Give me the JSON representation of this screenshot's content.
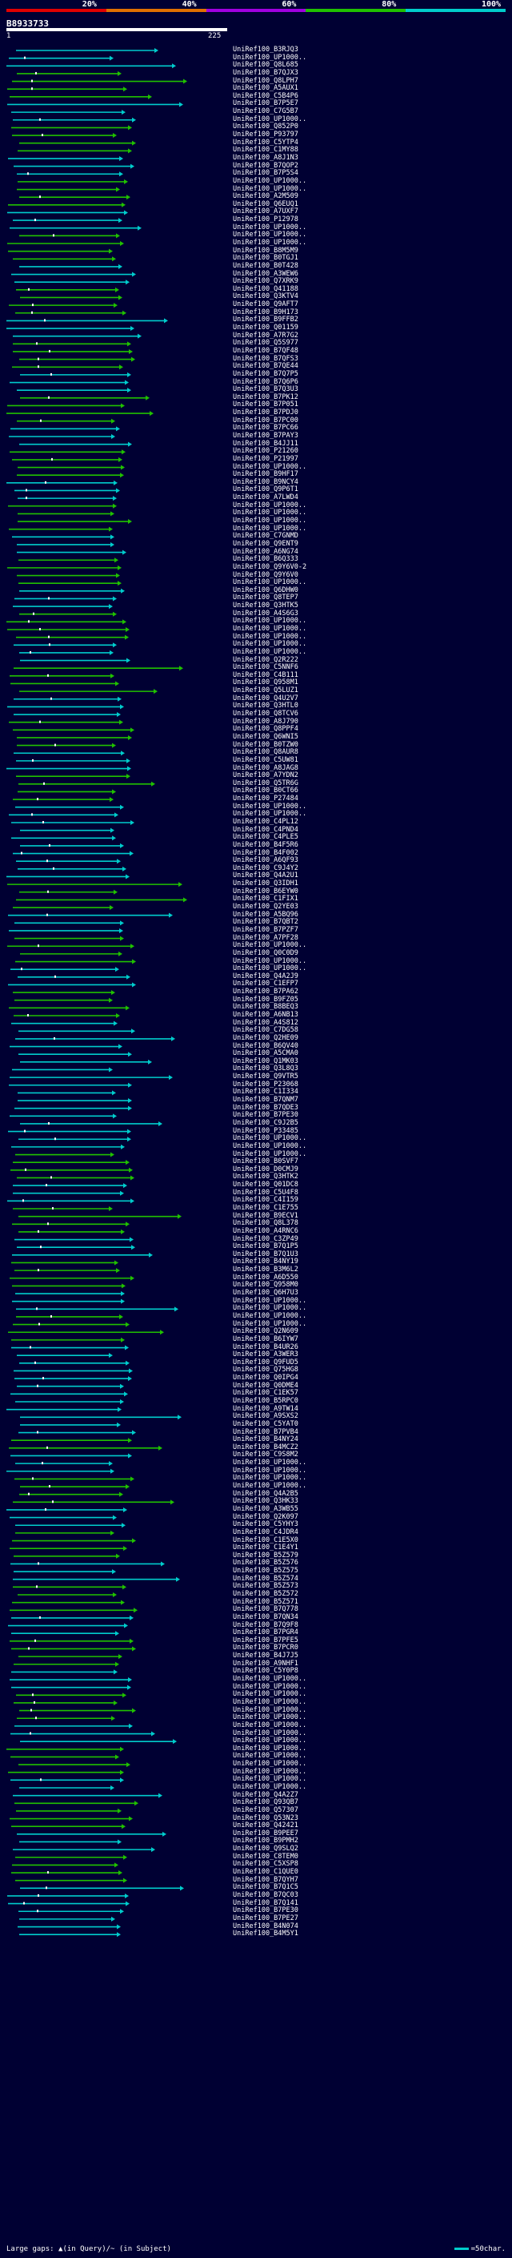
{
  "scale": {
    "labels": [
      "20%",
      "40%",
      "60%",
      "80%",
      "100%"
    ],
    "colors": [
      "#e00000",
      "#e07000",
      "#a000e0",
      "#20c000",
      "#00cccc"
    ]
  },
  "query": {
    "id": "B8933733",
    "start": "1",
    "end": "225"
  },
  "hits": [
    "UniRef100_B3RJQ3",
    "UniRef100_UP1000..",
    "UniRef100_Q8L685",
    "UniRef100_B7QJX3",
    "UniRef100_Q8LPH7",
    "UniRef100_A5AUX1",
    "UniRef100_C5B4P6",
    "UniRef100_B7P5E7",
    "UniRef100_C7G5B7",
    "UniRef100_UP1000..",
    "UniRef100_Q852P0",
    "UniRef100_P93797",
    "UniRef100_C5YTP4",
    "UniRef100_C1MY88",
    "UniRef100_A8J1N3",
    "UniRef100_B7QOP2",
    "UniRef100_B7P5S4",
    "UniRef100_UP1000..",
    "UniRef100_UP1000..",
    "UniRef100_A2M509",
    "UniRef100_Q6EUQ1",
    "UniRef100_A7UXF7",
    "UniRef100_P12978",
    "UniRef100_UP1000..",
    "UniRef100_UP1000..",
    "UniRef100_UP1000..",
    "UniRef100_B8M5M9",
    "UniRef100_B0TGJ1",
    "UniRef100_B0T428",
    "UniRef100_A3WEW6",
    "UniRef100_Q7XRK9",
    "UniRef100_Q41188",
    "UniRef100_Q3KTV4",
    "UniRef100_Q9AFT7",
    "UniRef100_B9H173",
    "UniRef100_B9FFB2",
    "UniRef100_Q01159",
    "UniRef100_A7R7G2",
    "UniRef100_Q5S977",
    "UniRef100_B7QF48",
    "UniRef100_B7QFS3",
    "UniRef100_B7QE44",
    "UniRef100_B7Q7P5",
    "UniRef100_B7Q6P6",
    "UniRef100_B7Q3U3",
    "UniRef100_B7PK12",
    "UniRef100_B7P051",
    "UniRef100_B7PDJ0",
    "UniRef100_B7PC00",
    "UniRef100_B7PC66",
    "UniRef100_B7PAY3",
    "UniRef100_B4JJ11",
    "UniRef100_P21260",
    "UniRef100_P21997",
    "UniRef100_UP1000..",
    "UniRef100_B9HF17",
    "UniRef100_B9NCY4",
    "UniRef100_Q9P6T1",
    "UniRef100_A7LWD4",
    "UniRef100_UP1000..",
    "UniRef100_UP1000..",
    "UniRef100_UP1000..",
    "UniRef100_UP1000..",
    "UniRef100_C7GNMD",
    "UniRef100_Q9ENT9",
    "UniRef100_A6NG74",
    "UniRef100_B6Q333",
    "UniRef100_Q9Y6V0-2",
    "UniRef100_Q9Y6V0",
    "UniRef100_UP1000..",
    "UniRef100_Q6DHW0",
    "UniRef100_Q8TEP7",
    "UniRef100_Q3HTK5",
    "UniRef100_A4S6G3",
    "UniRef100_UP1000..",
    "UniRef100_UP1000..",
    "UniRef100_UP1000..",
    "UniRef100_UP1000..",
    "UniRef100_UP1000..",
    "UniRef100_Q2R222",
    "UniRef100_C5NNF6",
    "UniRef100_C4B111",
    "UniRef100_Q958M1",
    "UniRef100_Q5LUZ1",
    "UniRef100_Q4U2V7",
    "UniRef100_Q3HTL0",
    "UniRef100_Q8TCV6",
    "UniRef100_A8J790",
    "UniRef100_Q8PPF4",
    "UniRef100_Q6WNI5",
    "UniRef100_B0TZW0",
    "UniRef100_Q8AUR8",
    "UniRef100_C5UW81",
    "UniRef100_A8JAG8",
    "UniRef100_A7YDN2",
    "UniRef100_Q5TR6G",
    "UniRef100_B0CT66",
    "UniRef100_P27484",
    "UniRef100_UP1000..",
    "UniRef100_UP1000..",
    "UniRef100_C4PL12",
    "UniRef100_C4PND4",
    "UniRef100_C4PLE5",
    "UniRef100_B4F5R6",
    "UniRef100_B4F002",
    "UniRef100_A6QF93",
    "UniRef100_C9J4Y2",
    "UniRef100_Q4A2U1",
    "UniRef100_Q3IDH1",
    "UniRef100_B6EYW0",
    "UniRef100_C1FIX1",
    "UniRef100_Q2YE03",
    "UniRef100_A5BQ96",
    "UniRef100_B7QBT2",
    "UniRef100_B7PZF7",
    "UniRef100_A7PF28",
    "UniRef100_UP1000..",
    "UniRef100_Q0C0D9",
    "UniRef100_UP1000..",
    "UniRef100_UP1000..",
    "UniRef100_Q4A2J9",
    "UniRef100_C1EFP7",
    "UniRef100_B7PA62",
    "UniRef100_B9FZ05",
    "UniRef100_B8BEQ3",
    "UniRef100_A6NB13",
    "UniRef100_A4S812",
    "UniRef100_C7DG58",
    "UniRef100_Q2HE09",
    "UniRef100_B6QV40",
    "UniRef100_A5CMA0",
    "UniRef100_Q1MK03",
    "UniRef100_Q3L8Q3",
    "UniRef100_Q9VTR5",
    "UniRef100_P23068",
    "UniRef100_C1I334",
    "UniRef100_B7QNM7",
    "UniRef100_B7QDE3",
    "UniRef100_B7PE30",
    "UniRef100_C9J2B5",
    "UniRef100_P33485",
    "UniRef100_UP1000..",
    "UniRef100_UP1000..",
    "UniRef100_UP1000..",
    "UniRef100_B0SVF7",
    "UniRef100_D0CMJ9",
    "UniRef100_Q3HTK2",
    "UniRef100_Q01DC8",
    "UniRef100_C5U4F8",
    "UniRef100_C4I159",
    "UniRef100_C1E755",
    "UniRef100_B9ECV1",
    "UniRef100_Q8L378",
    "UniRef100_A4RNC6",
    "UniRef100_C3ZP49",
    "UniRef100_B7Q1P5",
    "UniRef100_B7Q1U3",
    "UniRef100_B4NY19",
    "UniRef100_B3M6L2",
    "UniRef100_A6D550",
    "UniRef100_Q958M0",
    "UniRef100_Q6H7U3",
    "UniRef100_UP1000..",
    "UniRef100_UP1000..",
    "UniRef100_UP1000..",
    "UniRef100_UP1000..",
    "UniRef100_Q2N609",
    "UniRef100_B6IYW7",
    "UniRef100_B4UR26",
    "UniRef100_A3WER3",
    "UniRef100_Q9FUD5",
    "UniRef100_Q75HG8",
    "UniRef100_Q0IPG4",
    "UniRef100_Q0DME4",
    "UniRef100_C1EK57",
    "UniRef100_B5RPC0",
    "UniRef100_A9TW14",
    "UniRef100_A9SXS2",
    "UniRef100_C5YAT0",
    "UniRef100_B7PVB4",
    "UniRef100_B4NY24",
    "UniRef100_B4MCZ2",
    "UniRef100_C9S8M2",
    "UniRef100_UP1000..",
    "UniRef100_UP1000..",
    "UniRef100_UP1000..",
    "UniRef100_UP1000..",
    "UniRef100_Q4A2B5",
    "UniRef100_Q3HK33",
    "UniRef100_A3WB55",
    "UniRef100_Q2K097",
    "UniRef100_C5YHY3",
    "UniRef100_C4JDR4",
    "UniRef100_C1E5X0",
    "UniRef100_C1E4Y1",
    "UniRef100_B5Z579",
    "UniRef100_B5Z576",
    "UniRef100_B5Z575",
    "UniRef100_B5Z574",
    "UniRef100_B5Z573",
    "UniRef100_B5Z572",
    "UniRef100_B5Z571",
    "UniRef100_B7Q778",
    "UniRef100_B7QN34",
    "UniRef100_B7Q9F8",
    "UniRef100_B7PGR4",
    "UniRef100_B7PFE5",
    "UniRef100_B7PCR0",
    "UniRef100_B4J7J5",
    "UniRef100_A9NHF1",
    "UniRef100_C5Y0P8",
    "UniRef100_UP1000..",
    "UniRef100_UP1000..",
    "UniRef100_UP1000..",
    "UniRef100_UP1000..",
    "UniRef100_UP1000..",
    "UniRef100_UP1000..",
    "UniRef100_UP1000..",
    "UniRef100_UP1000..",
    "UniRef100_UP1000..",
    "UniRef100_UP1000..",
    "UniRef100_UP1000..",
    "UniRef100_UP1000..",
    "UniRef100_UP1000..",
    "UniRef100_UP1000..",
    "UniRef100_UP1000..",
    "UniRef100_Q4A2Z7",
    "UniRef100_Q93QB7",
    "UniRef100_Q57307",
    "UniRef100_Q53N23",
    "UniRef100_Q42421",
    "UniRef100_B9PEE7",
    "UniRef100_B9PMH2",
    "UniRef100_Q9SLQ2",
    "UniRef100_C8TEM0",
    "UniRef100_C5XSP8",
    "UniRef100_C1QUE0",
    "UniRef100_B7QYH7",
    "UniRef100_B7Q1C5",
    "UniRef100_B7QC03",
    "UniRef100_B7Q141",
    "UniRef100_B7PE30",
    "UniRef100_B7PE27",
    "UniRef100_B4N074",
    "UniRef100_B4M5Y1"
  ],
  "legend": {
    "text": "Large gaps: ▲(in Query)/~ (in Subject)",
    "scale_text": "=50char."
  }
}
